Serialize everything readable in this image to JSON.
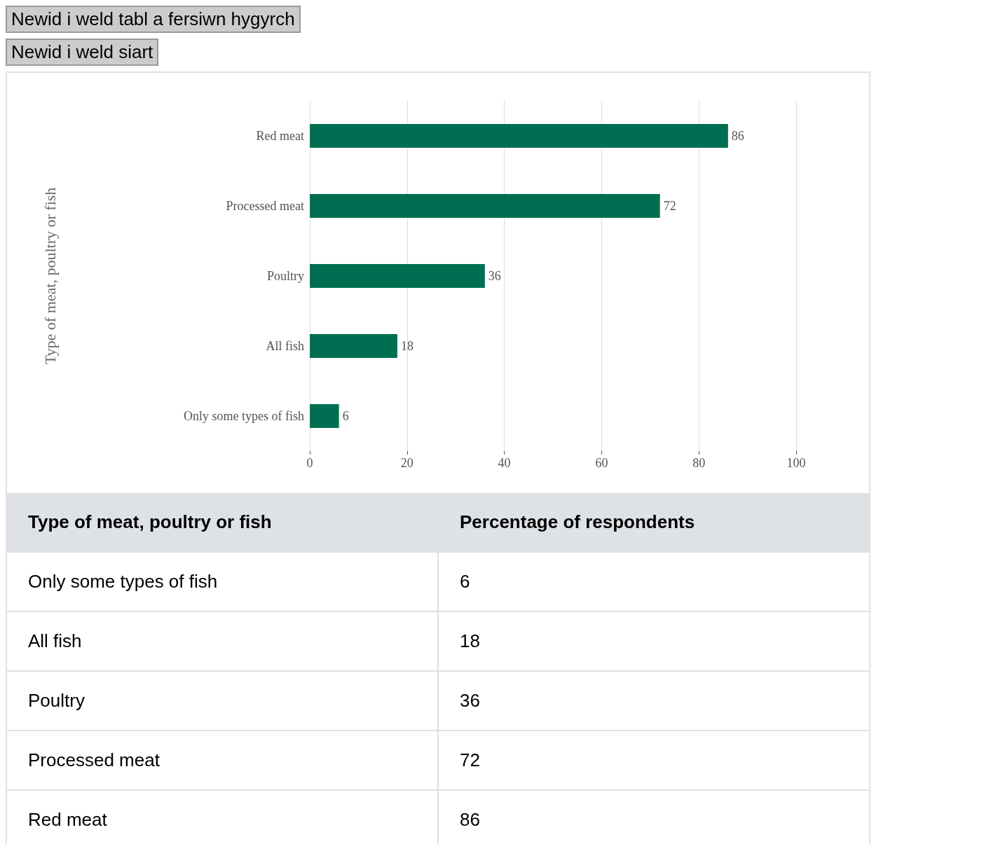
{
  "chart_data": {
    "type": "bar",
    "orientation": "horizontal",
    "ylabel": "Type of meat, poultry or fish",
    "xlabel": "Percentage of respondents",
    "categories": [
      "Red meat",
      "Processed meat",
      "Poultry",
      "All fish",
      "Only some types of fish"
    ],
    "values": [
      86,
      72,
      36,
      18,
      6
    ],
    "color": "#006f51",
    "value_labels": [
      "86",
      "72",
      "36",
      "18",
      "6"
    ],
    "xlim": [
      0,
      100
    ],
    "xticks": [
      0,
      20,
      40,
      60,
      80,
      100
    ],
    "grid": "x",
    "annotations": [
      "Newid i weld tabl a fersiwn hygyrch",
      "Newid i weld siart"
    ]
  }
}
